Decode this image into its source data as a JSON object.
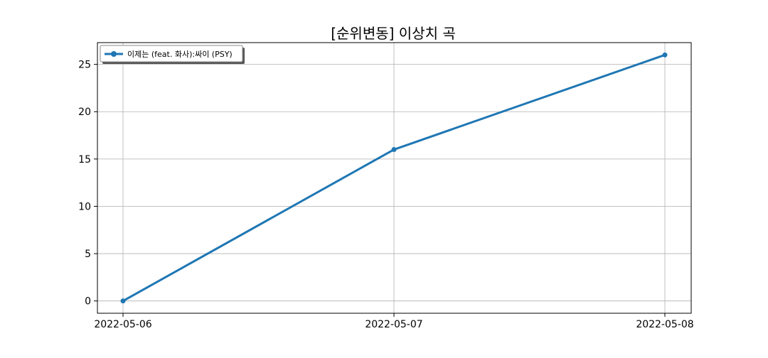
{
  "chart_data": {
    "type": "line",
    "title": "[순위변동] 이상치 곡",
    "xlabel": "",
    "ylabel": "",
    "categories": [
      "2022-05-06",
      "2022-05-07",
      "2022-05-08"
    ],
    "series": [
      {
        "name": "이제는 (feat. 화사):싸이 (PSY)",
        "values": [
          0,
          16,
          26
        ],
        "color": "#1f77b4",
        "marker": "circle"
      }
    ],
    "y_ticks": [
      "0",
      "5",
      "10",
      "15",
      "20",
      "25"
    ],
    "ylim": [
      -1.3,
      27.3
    ],
    "grid": true,
    "legend_position": "upper-left"
  }
}
